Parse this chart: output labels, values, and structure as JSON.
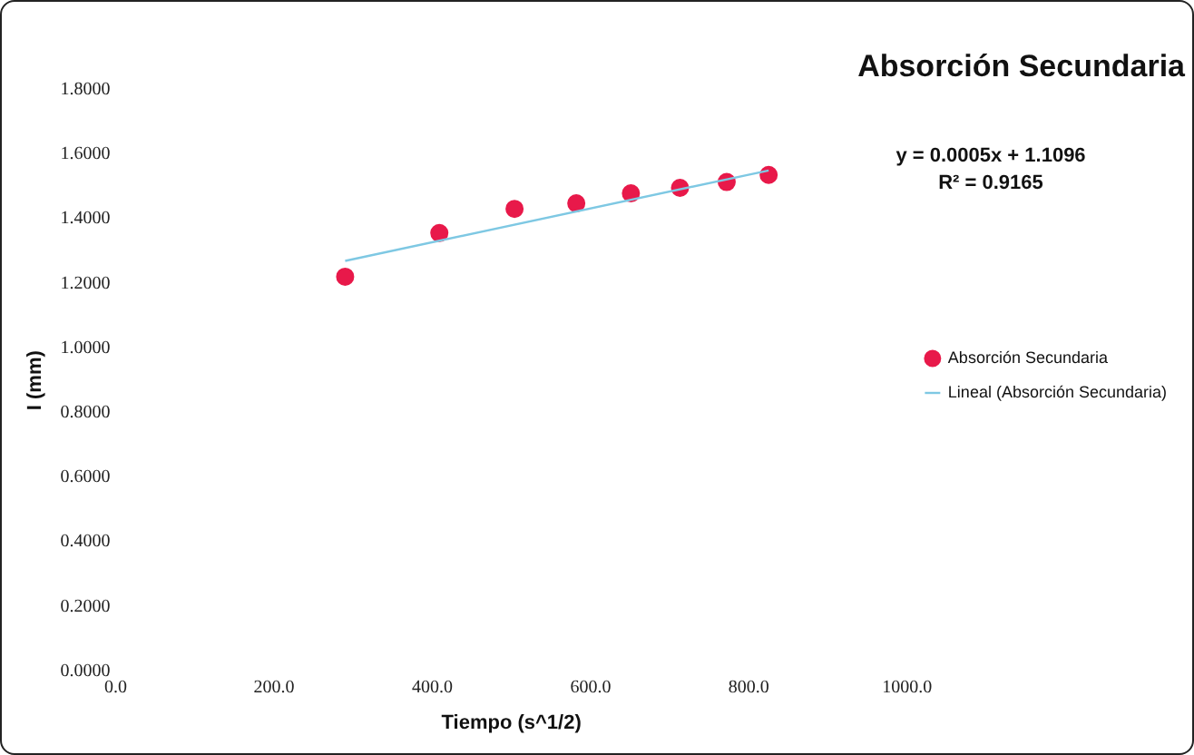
{
  "chart_data": {
    "type": "scatter",
    "title": "Absorción Secundaria",
    "xlabel": "Tiempo (s^1/2)",
    "ylabel": "I (mm)",
    "annotations": [
      "y = 0.0005x + 1.1096",
      "R² = 0.9165"
    ],
    "series": [
      {
        "name": "Absorción Secundaria",
        "color": "#e8194a",
        "marker": "circle",
        "x": [
          290,
          409,
          504,
          582,
          651,
          713,
          772,
          825
        ],
        "values": [
          1.221,
          1.356,
          1.431,
          1.448,
          1.479,
          1.496,
          1.514,
          1.536
        ]
      },
      {
        "name": "Lineal (Absorción Secundaria)",
        "type": "line",
        "color": "#7ec8e3",
        "marker": "none",
        "x": [
          290,
          825
        ],
        "values": [
          1.27,
          1.55
        ]
      }
    ],
    "xlim": [
      0,
      1000
    ],
    "xticks": [
      {
        "value": 0,
        "label": "0.0"
      },
      {
        "value": 200,
        "label": "200.0"
      },
      {
        "value": 400,
        "label": "400.0"
      },
      {
        "value": 600,
        "label": "600.0"
      },
      {
        "value": 800,
        "label": "800.0"
      },
      {
        "value": 1000,
        "label": "1000.0"
      }
    ],
    "ylim": [
      0,
      1.8
    ],
    "yticks": [
      {
        "value": 0,
        "label": "0.0000"
      },
      {
        "value": 0.2,
        "label": "0.2000"
      },
      {
        "value": 0.4,
        "label": "0.4000"
      },
      {
        "value": 0.6,
        "label": "0.6000"
      },
      {
        "value": 0.8,
        "label": "0.8000"
      },
      {
        "value": 1,
        "label": "1.0000"
      },
      {
        "value": 1.2,
        "label": "1.2000"
      },
      {
        "value": 1.4,
        "label": "1.4000"
      },
      {
        "value": 1.6,
        "label": "1.6000"
      },
      {
        "value": 1.8,
        "label": "1.8000"
      }
    ],
    "grid": false,
    "legend": "right"
  }
}
